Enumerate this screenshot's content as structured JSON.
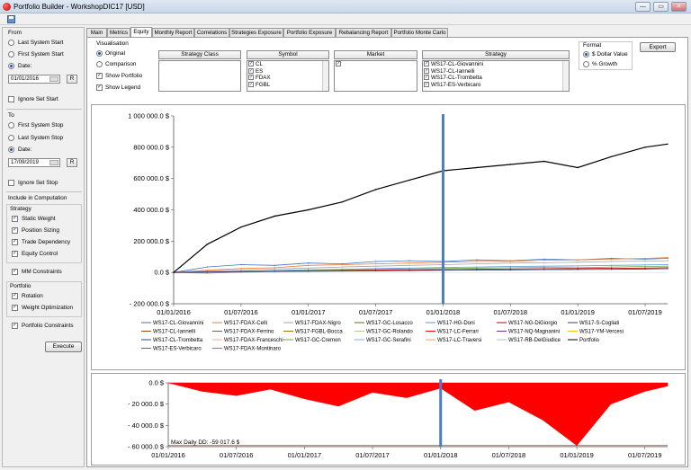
{
  "window": {
    "title": "Portfolio Builder - WorkshopDIC17 [USD]",
    "buttons": [
      "—",
      "▭",
      "✕"
    ]
  },
  "left": {
    "from_label": "From",
    "from_options": [
      {
        "label": "Last System Start",
        "selected": false
      },
      {
        "label": "First System Start",
        "selected": false
      },
      {
        "label": "Date:",
        "selected": true
      }
    ],
    "from_date": "01/01/2016",
    "r_label": "R",
    "ignore_start": "Ignore Set Start",
    "to_label": "To",
    "to_options": [
      {
        "label": "First System Stop",
        "selected": false
      },
      {
        "label": "Last System Stop",
        "selected": false
      },
      {
        "label": "Date:",
        "selected": true
      }
    ],
    "to_date": "17/09/2019",
    "ignore_stop": "Ignore Set Stop",
    "include_label": "Include in Computation",
    "strategy_label": "Strategy",
    "strategy_items": [
      "Static Weight",
      "Position Sizing",
      "Trade Dependency",
      "Equity Control"
    ],
    "mm_constraints": "MM Constraints",
    "portfolio_label": "Portfolio",
    "portfolio_items": [
      "Rotation",
      "Weight Optimization"
    ],
    "portfolio_constraints": "Portfolio Constraints",
    "execute": "Execute"
  },
  "tabs": [
    "Main",
    "Metrics",
    "Equity",
    "Monthly Report",
    "Correlations",
    "Strategies Exposure",
    "Portfolio Exposure",
    "Rebalancing Report",
    "Portfolio Monte Carlo"
  ],
  "active_tab": "Equity",
  "visualisation": {
    "label": "Visualisation",
    "options": [
      {
        "label": "Original",
        "selected": true
      },
      {
        "label": "Comparison",
        "selected": false
      }
    ],
    "show_portfolio": "Show Portfolio",
    "show_legend": "Show Legend"
  },
  "filters": {
    "strategy_class": "Strategy Class",
    "symbol": "Symbol",
    "symbols": [
      "CL",
      "ES",
      "FDAX",
      "FGBL"
    ],
    "market": "Market",
    "strategy": "Strategy",
    "strategies": [
      "WS17-CL-Giovannini",
      "WS17-CL-Iannelli",
      "WS17-CL-Trombetta",
      "WS17-ES-Verbicaro"
    ]
  },
  "format": {
    "label": "Format",
    "options": [
      {
        "label": "$ Dollar Value",
        "selected": true
      },
      {
        "label": "% Growth",
        "selected": false
      }
    ],
    "export": "Export"
  },
  "chart_data": [
    {
      "type": "line",
      "title": "",
      "x": [
        "2016-01",
        "2016-04",
        "2016-07",
        "2016-10",
        "2017-01",
        "2017-04",
        "2017-07",
        "2017-10",
        "2018-01",
        "2018-04",
        "2018-07",
        "2018-10",
        "2019-01",
        "2019-04",
        "2019-07",
        "2019-09"
      ],
      "x_tick_labels": [
        "01/01/2016",
        "01/07/2016",
        "01/01/2017",
        "01/07/2017",
        "01/01/2018",
        "01/07/2018",
        "01/01/2019",
        "01/07/2019"
      ],
      "y_tick_labels": [
        "- 200 000.0 $",
        "0.0 $",
        "200 000.0 $",
        "400 000.0 $",
        "600 000.0 $",
        "800 000.0 $",
        "1 000 000.0 $"
      ],
      "ylim": [
        -200000,
        1000000
      ],
      "grid": false,
      "marker_line_date": "2018-01",
      "legend_position": "bottom",
      "series": [
        {
          "name": "Portfolio",
          "color": "#000000",
          "values": [
            0,
            180000,
            290000,
            360000,
            400000,
            450000,
            530000,
            590000,
            650000,
            670000,
            690000,
            710000,
            670000,
            740000,
            800000,
            820000
          ]
        },
        {
          "name": "WS17-CL-Giovannini",
          "color": "#4472c4",
          "values": [
            0,
            35000,
            50000,
            45000,
            60000,
            55000,
            70000,
            75000,
            70000,
            80000,
            75000,
            85000,
            80000,
            90000,
            85000,
            90000
          ]
        },
        {
          "name": "WS17-FDAX-Celli",
          "color": "#ed7d31",
          "values": [
            0,
            15000,
            25000,
            30000,
            45000,
            50000,
            55000,
            60000,
            65000,
            70000,
            72000,
            78000,
            80000,
            85000,
            90000,
            95000
          ]
        },
        {
          "name": "WS17-FDAX-Nigro",
          "color": "#a5a5a5",
          "values": [
            0,
            10000,
            15000,
            22000,
            28000,
            35000,
            40000,
            45000,
            50000,
            55000,
            60000,
            62000,
            65000,
            70000,
            72000,
            75000
          ]
        },
        {
          "name": "WS17-GC-Losacco",
          "color": "#5b9bd5",
          "values": [
            0,
            5000,
            8000,
            12000,
            18000,
            20000,
            25000,
            28000,
            32000,
            35000,
            38000,
            40000,
            42000,
            45000,
            48000,
            50000
          ]
        },
        {
          "name": "WS17-HG-Doni",
          "color": "#70ad47",
          "values": [
            0,
            -5000,
            2000,
            8000,
            12000,
            15000,
            18000,
            22000,
            25000,
            28000,
            30000,
            32000,
            30000,
            35000,
            38000,
            40000
          ]
        },
        {
          "name": "WS17-NG-DiGiorgio",
          "color": "#c00000",
          "values": [
            0,
            3000,
            5000,
            8000,
            10000,
            12000,
            14000,
            16000,
            18000,
            20000,
            22000,
            24000,
            25000,
            27000,
            28000,
            30000
          ]
        },
        {
          "name": "WS17-CL-Trombetta",
          "color": "#264478",
          "values": [
            0,
            2000,
            4000,
            6000,
            8000,
            9000,
            10000,
            12000,
            14000,
            15000,
            16000,
            18000,
            19000,
            20000,
            22000,
            24000
          ]
        }
      ]
    },
    {
      "type": "area",
      "title": "",
      "annotation": "Max Daily DD: -59 017.6 $",
      "x_tick_labels": [
        "01/01/2016",
        "01/07/2016",
        "01/01/2017",
        "01/07/2017",
        "01/01/2018",
        "01/07/2018",
        "01/01/2019",
        "01/07/2019"
      ],
      "y_tick_labels": [
        "- 60 000.0 $",
        "- 40 000.0 $",
        "- 20 000.0 $",
        "0.0 $"
      ],
      "ylim": [
        -60000,
        0
      ],
      "color": "#ff0000",
      "marker_line_date": "2018-01",
      "x": [
        "2016-01",
        "2016-04",
        "2016-07",
        "2016-10",
        "2017-01",
        "2017-04",
        "2017-07",
        "2017-10",
        "2018-01",
        "2018-04",
        "2018-07",
        "2018-10",
        "2019-01",
        "2019-04",
        "2019-07",
        "2019-09"
      ],
      "values": [
        0,
        -8000,
        -12000,
        -6000,
        -15000,
        -22000,
        -9000,
        -14000,
        -5000,
        -26000,
        -18000,
        -35000,
        -59017.6,
        -20000,
        -8000,
        -3000
      ]
    }
  ],
  "legend": [
    {
      "label": "WS17-CL-Giovannini",
      "color": "#4472c4"
    },
    {
      "label": "WS17-FDAX-Celli",
      "color": "#ed7d31"
    },
    {
      "label": "WS17-FDAX-Nigro",
      "color": "#a5a5a5"
    },
    {
      "label": "WS17-GC-Losacco",
      "color": "#7f6000"
    },
    {
      "label": "WS17-HG-Doni",
      "color": "#5b9bd5"
    },
    {
      "label": "WS17-NG-DiGiorgio",
      "color": "#c00000"
    },
    {
      "label": "WS17-S-Cogliati",
      "color": "#264478"
    },
    {
      "label": "WS17-CL-Iannelli",
      "color": "#9e480e"
    },
    {
      "label": "WS17-FDAX-Ferrino",
      "color": "#636363"
    },
    {
      "label": "WS17-FGBL-Bocca",
      "color": "#997300"
    },
    {
      "label": "WS17-GC-Rolando",
      "color": "#a9d18e"
    },
    {
      "label": "WS17-LC-Ferrari",
      "color": "#ff0000"
    },
    {
      "label": "WS17-NQ-Magnanini",
      "color": "#7030a0"
    },
    {
      "label": "WS17-YM-Vercesi",
      "color": "#ffc000"
    },
    {
      "label": "WS17-CL-Trombetta",
      "color": "#1f4e79"
    },
    {
      "label": "WS17-FDAX-Franceschi",
      "color": "#f4b183"
    },
    {
      "label": "WS17-GC-Cremon",
      "color": "#70ad47"
    },
    {
      "label": "WS17-GC-Serafini",
      "color": "#8faadc"
    },
    {
      "label": "WS17-LC-Traversi",
      "color": "#ff9966"
    },
    {
      "label": "WS17-RB-DelGiudice",
      "color": "#bfbfbf"
    },
    {
      "label": "Portfolio",
      "color": "#000000"
    },
    {
      "label": "WS17-ES-Verbicaro",
      "color": "#2e75b6"
    },
    {
      "label": "WS17-FDAX-Montinaro",
      "color": "#00b0f0"
    }
  ]
}
